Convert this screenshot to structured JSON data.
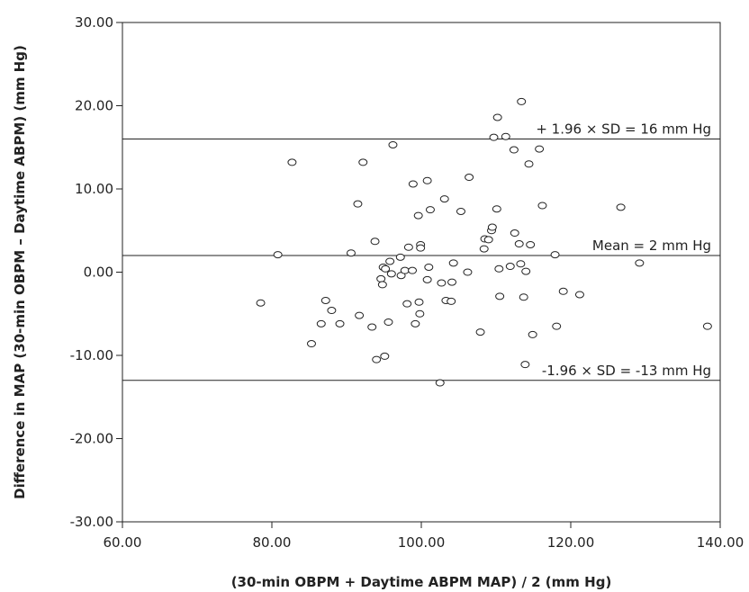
{
  "chart_data": {
    "type": "scatter",
    "title": "",
    "xlabel": "(30-min OBPM + Daytime ABPM MAP) / 2 (mm Hg)",
    "ylabel": "Difference in MAP (30-min OBPM – Daytime ABPM) (mm Hg)",
    "xlim": [
      60,
      140
    ],
    "ylim": [
      -30,
      30
    ],
    "x_ticks": [
      "60.00",
      "80.00",
      "100.00",
      "120.00",
      "140.00"
    ],
    "y_ticks": [
      "30.00",
      "20.00",
      "10.00",
      "0.00",
      "-10.00",
      "-20.00",
      "-30.00"
    ],
    "x_tick_values": [
      60,
      80,
      100,
      120,
      140
    ],
    "y_tick_values": [
      30,
      20,
      10,
      0,
      -10,
      -20,
      -30
    ],
    "reference_lines": [
      {
        "label": "+ 1.96 × SD = 16 mm Hg",
        "y": 16
      },
      {
        "label": "Mean = 2 mm Hg",
        "y": 2
      },
      {
        "label": "-1.96 × SD = -13 mm Hg",
        "y": -13
      }
    ],
    "points": [
      [
        78.5,
        -3.7
      ],
      [
        80.8,
        2.1
      ],
      [
        82.7,
        13.2
      ],
      [
        85.3,
        -8.6
      ],
      [
        86.6,
        -6.2
      ],
      [
        87.2,
        -3.4
      ],
      [
        88.0,
        -4.6
      ],
      [
        89.1,
        -6.2
      ],
      [
        90.6,
        2.3
      ],
      [
        91.5,
        8.2
      ],
      [
        91.7,
        -5.2
      ],
      [
        92.2,
        13.2
      ],
      [
        93.4,
        -6.6
      ],
      [
        93.8,
        3.7
      ],
      [
        94.0,
        -10.5
      ],
      [
        94.6,
        -0.8
      ],
      [
        94.8,
        -1.5
      ],
      [
        94.9,
        0.6
      ],
      [
        95.1,
        -10.1
      ],
      [
        95.2,
        0.4
      ],
      [
        95.6,
        -6.0
      ],
      [
        95.8,
        1.3
      ],
      [
        96.0,
        -0.2
      ],
      [
        96.2,
        15.3
      ],
      [
        97.2,
        1.8
      ],
      [
        97.3,
        -0.4
      ],
      [
        97.8,
        0.2
      ],
      [
        98.1,
        -3.8
      ],
      [
        98.3,
        3.0
      ],
      [
        98.8,
        0.2
      ],
      [
        98.9,
        10.6
      ],
      [
        99.2,
        -6.2
      ],
      [
        99.6,
        6.8
      ],
      [
        99.7,
        -3.6
      ],
      [
        99.8,
        -5.0
      ],
      [
        99.9,
        3.3
      ],
      [
        99.9,
        2.9
      ],
      [
        100.8,
        -0.9
      ],
      [
        100.8,
        11.0
      ],
      [
        101.0,
        0.6
      ],
      [
        101.2,
        7.5
      ],
      [
        102.5,
        -13.3
      ],
      [
        102.7,
        -1.3
      ],
      [
        103.1,
        8.8
      ],
      [
        103.3,
        -3.4
      ],
      [
        104.0,
        -3.5
      ],
      [
        104.1,
        -1.2
      ],
      [
        104.3,
        1.1
      ],
      [
        105.3,
        7.3
      ],
      [
        106.2,
        0.0
      ],
      [
        106.4,
        11.4
      ],
      [
        107.9,
        -7.2
      ],
      [
        108.4,
        2.8
      ],
      [
        108.5,
        4.0
      ],
      [
        109.0,
        3.9
      ],
      [
        109.4,
        5.0
      ],
      [
        109.5,
        5.4
      ],
      [
        109.7,
        16.2
      ],
      [
        110.1,
        7.6
      ],
      [
        110.2,
        18.6
      ],
      [
        110.4,
        0.4
      ],
      [
        110.5,
        -2.9
      ],
      [
        111.3,
        16.3
      ],
      [
        111.9,
        0.7
      ],
      [
        112.4,
        14.7
      ],
      [
        112.5,
        4.7
      ],
      [
        113.1,
        3.4
      ],
      [
        113.3,
        1.0
      ],
      [
        113.4,
        20.5
      ],
      [
        113.7,
        -3.0
      ],
      [
        113.9,
        -11.1
      ],
      [
        114.0,
        0.1
      ],
      [
        114.4,
        13.0
      ],
      [
        114.6,
        3.3
      ],
      [
        114.9,
        -7.5
      ],
      [
        115.8,
        14.8
      ],
      [
        116.2,
        8.0
      ],
      [
        117.9,
        2.1
      ],
      [
        118.1,
        -6.5
      ],
      [
        119.0,
        -2.3
      ],
      [
        121.2,
        -2.7
      ],
      [
        126.7,
        7.8
      ],
      [
        129.2,
        1.1
      ],
      [
        138.3,
        -6.5
      ]
    ],
    "marker": "open-circle",
    "grid": false,
    "legend": "none"
  }
}
